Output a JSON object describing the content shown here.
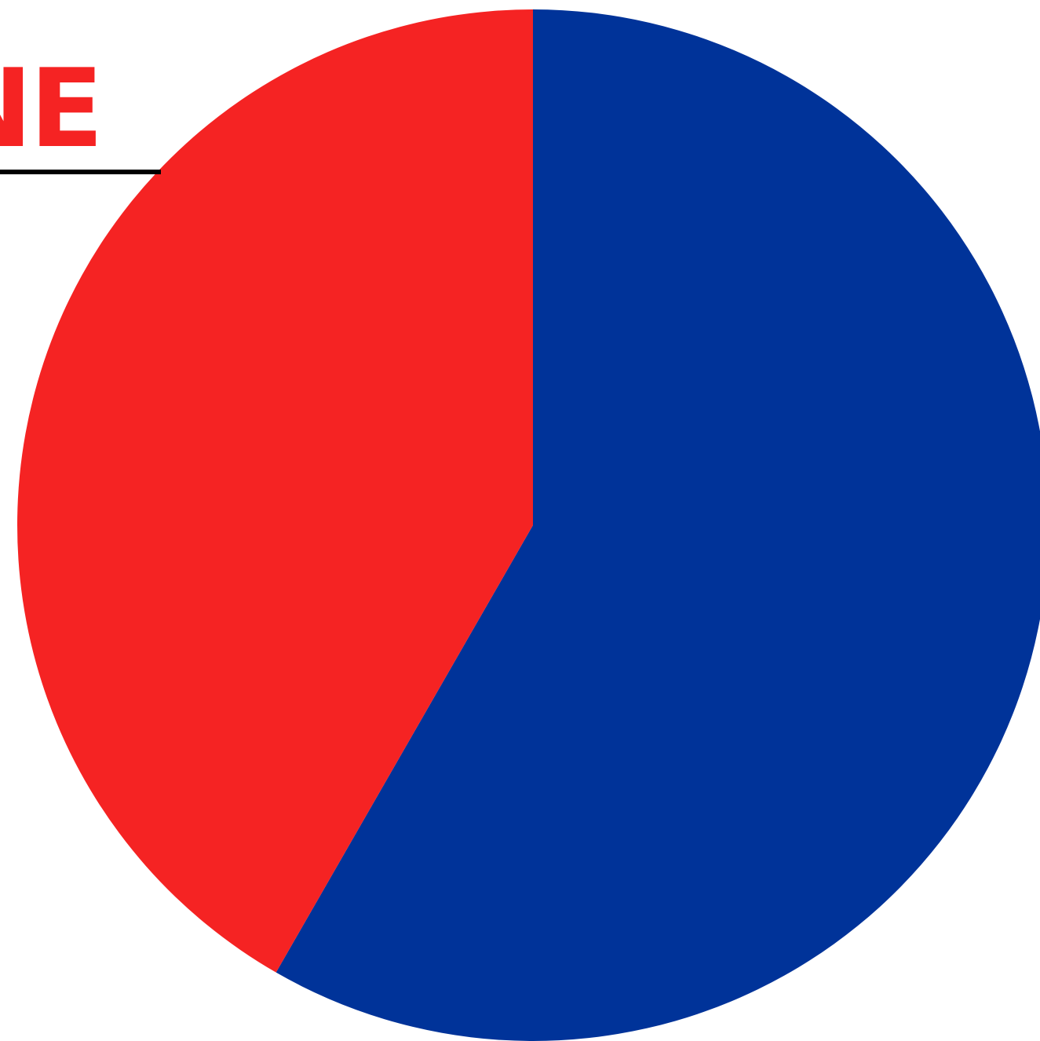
{
  "chart_data": {
    "type": "pie",
    "title": "NE",
    "slices": [
      {
        "value": 58.3,
        "color": "#003399"
      },
      {
        "value": 41.7,
        "color": "#f52323"
      }
    ],
    "start_angle_deg": 0,
    "direction": "clockwise",
    "legend": "none"
  },
  "colors": {
    "title": "#f52323",
    "title_rule": "#000000",
    "background": "#ffffff"
  }
}
